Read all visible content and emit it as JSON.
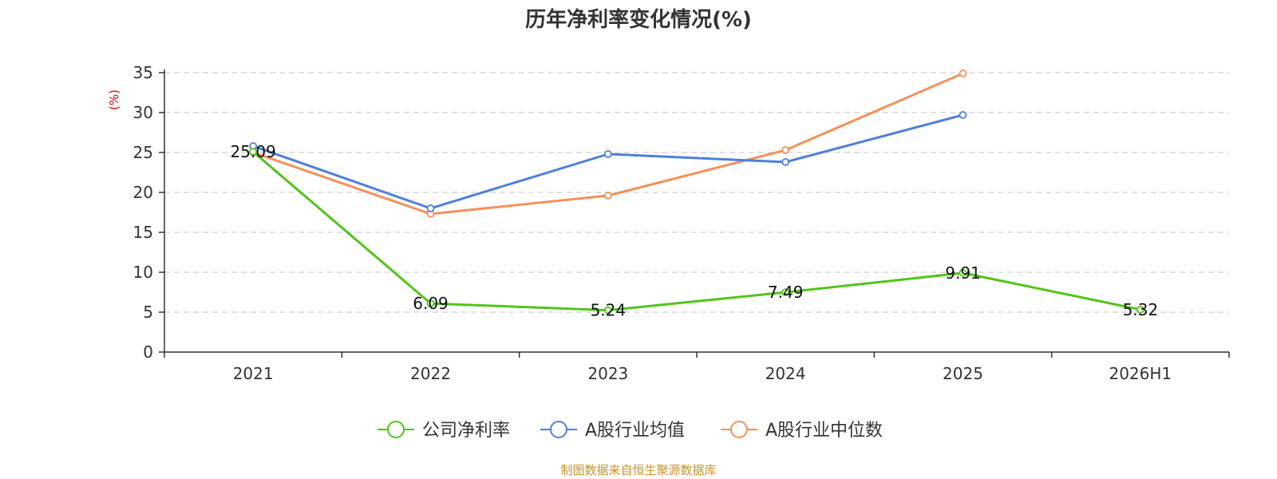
{
  "title": "历年净利率变化情况(%)",
  "source_text": "制图数据来自恒生聚源数据库",
  "chart_data": {
    "type": "line",
    "title": "历年净利率变化情况(%)",
    "ylabel": "(%)",
    "xlabel": "",
    "categories": [
      "2021",
      "2022",
      "2023",
      "2024",
      "2025",
      "2026H1"
    ],
    "ylim": [
      0,
      35
    ],
    "yticks": [
      0,
      5,
      10,
      15,
      20,
      25,
      30,
      35
    ],
    "grid": true,
    "legend_position": "bottom",
    "series": [
      {
        "name": "公司净利率",
        "color": "#52c41a",
        "values": [
          25.09,
          6.09,
          5.24,
          7.49,
          9.91,
          5.32
        ],
        "show_labels": true,
        "labels": [
          "25.09",
          "6.09",
          "5.24",
          "7.49",
          "9.91",
          "5.32"
        ]
      },
      {
        "name": "A股行业均值",
        "color": "#4e7fdc",
        "values": [
          25.8,
          18.0,
          24.8,
          23.8,
          29.7,
          null
        ],
        "show_labels": false
      },
      {
        "name": "A股行业中位数",
        "color": "#f5905a",
        "values": [
          25.0,
          17.3,
          19.6,
          25.3,
          34.9,
          null
        ],
        "show_labels": false
      }
    ]
  }
}
